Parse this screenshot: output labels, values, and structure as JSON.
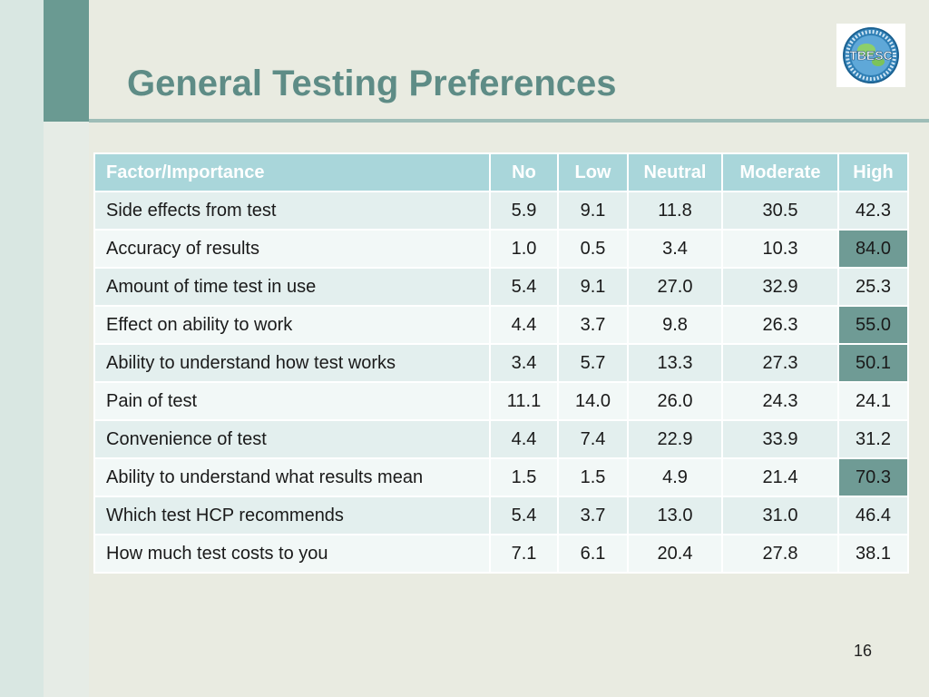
{
  "slide": {
    "title": "General Testing Preferences",
    "page_number": "16",
    "logo_text": "TBESC"
  },
  "table": {
    "headers": [
      "Factor/Importance",
      "No",
      "Low",
      "Neutral",
      "Moderate",
      "High"
    ],
    "rows": [
      {
        "factor": "Side effects from test",
        "values": [
          "5.9",
          "9.1",
          "11.8",
          "30.5",
          "42.3"
        ],
        "high_highlight": false
      },
      {
        "factor": "Accuracy of results",
        "values": [
          "1.0",
          "0.5",
          "3.4",
          "10.3",
          "84.0"
        ],
        "high_highlight": true
      },
      {
        "factor": "Amount of time test in use",
        "values": [
          "5.4",
          "9.1",
          "27.0",
          "32.9",
          "25.3"
        ],
        "high_highlight": false
      },
      {
        "factor": "Effect on ability to work",
        "values": [
          "4.4",
          "3.7",
          "9.8",
          "26.3",
          "55.0"
        ],
        "high_highlight": true
      },
      {
        "factor": "Ability to understand how test works",
        "values": [
          "3.4",
          "5.7",
          "13.3",
          "27.3",
          "50.1"
        ],
        "high_highlight": true
      },
      {
        "factor": "Pain of test",
        "values": [
          "11.1",
          "14.0",
          "26.0",
          "24.3",
          "24.1"
        ],
        "high_highlight": false
      },
      {
        "factor": "Convenience of test",
        "values": [
          "4.4",
          "7.4",
          "22.9",
          "33.9",
          "31.2"
        ],
        "high_highlight": false
      },
      {
        "factor": "Ability to understand what results mean",
        "values": [
          "1.5",
          "1.5",
          "4.9",
          "21.4",
          "70.3"
        ],
        "high_highlight": true
      },
      {
        "factor": "Which test HCP recommends",
        "values": [
          "5.4",
          "3.7",
          "13.0",
          "31.0",
          "46.4"
        ],
        "high_highlight": false
      },
      {
        "factor": "How much test costs to you",
        "values": [
          "7.1",
          "6.1",
          "20.4",
          "27.8",
          "38.1"
        ],
        "high_highlight": false
      }
    ]
  },
  "colors": {
    "title": "#5e8c86",
    "header_bg": "#a9d6da",
    "row_odd": "#e3efee",
    "row_even": "#f2f8f7",
    "highlight": "#6f9b95"
  }
}
